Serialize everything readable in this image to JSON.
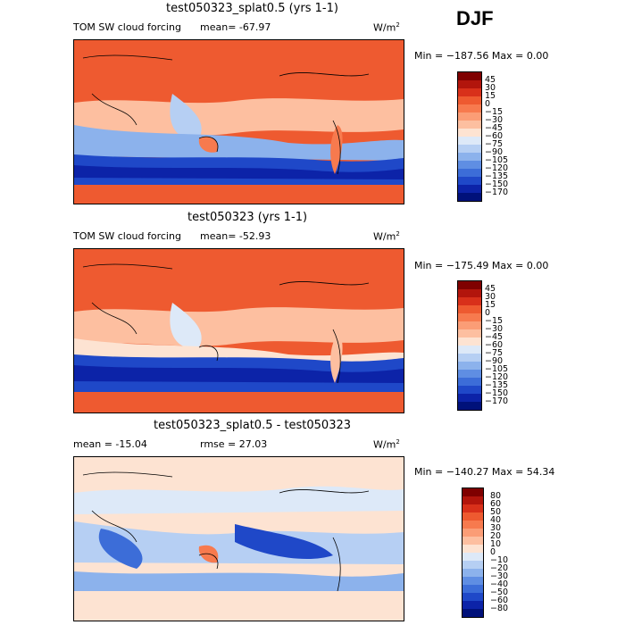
{
  "season": "DJF",
  "panels": [
    {
      "title": "test050323_splat0.5 (yrs 1-1)",
      "label_left": "TOM SW cloud forcing",
      "label_mid": "mean= -67.97",
      "units": "W/m",
      "units_sup": "2",
      "minmax": "Min = −187.56 Max =    0.00",
      "colorbar_labels": [
        "45",
        "30",
        "15",
        "0",
        "−15",
        "−30",
        "−45",
        "−60",
        "−75",
        "−90",
        "−105",
        "−120",
        "−135",
        "−150",
        "−170"
      ],
      "colorbar_colors": [
        "#7f0000",
        "#b2150c",
        "#d8301a",
        "#ee5a30",
        "#f77a4e",
        "#fb9d76",
        "#fdbfa0",
        "#fde3d2",
        "#dde9f8",
        "#b6cff3",
        "#8cb2ec",
        "#5f8ee3",
        "#3c6dd8",
        "#1f48c8",
        "#0c23a8",
        "#00117a"
      ]
    },
    {
      "title": "test050323 (yrs 1-1)",
      "label_left": "TOM SW cloud forcing",
      "label_mid": "mean= -52.93",
      "units": "W/m",
      "units_sup": "2",
      "minmax": "Min = −175.49 Max =    0.00",
      "colorbar_labels": [
        "45",
        "30",
        "15",
        "0",
        "−15",
        "−30",
        "−45",
        "−60",
        "−75",
        "−90",
        "−105",
        "−120",
        "−135",
        "−150",
        "−170"
      ],
      "colorbar_colors": [
        "#7f0000",
        "#b2150c",
        "#d8301a",
        "#ee5a30",
        "#f77a4e",
        "#fb9d76",
        "#fdbfa0",
        "#fde3d2",
        "#dde9f8",
        "#b6cff3",
        "#8cb2ec",
        "#5f8ee3",
        "#3c6dd8",
        "#1f48c8",
        "#0c23a8",
        "#00117a"
      ]
    },
    {
      "title": "test050323_splat0.5 - test050323",
      "label_left": "mean = -15.04",
      "label_mid": "rmse =  27.03",
      "units": "W/m",
      "units_sup": "2",
      "minmax": "Min = −140.27 Max =  54.34",
      "colorbar_labels": [
        "80",
        "60",
        "50",
        "40",
        "30",
        "20",
        "10",
        "0",
        "−10",
        "−20",
        "−30",
        "−40",
        "−50",
        "−60",
        "−80"
      ],
      "colorbar_colors": [
        "#7f0000",
        "#b2150c",
        "#d8301a",
        "#ee5a30",
        "#f77a4e",
        "#fb9d76",
        "#fdbfa0",
        "#fde3d2",
        "#dde9f8",
        "#b6cff3",
        "#8cb2ec",
        "#5f8ee3",
        "#3c6dd8",
        "#1f48c8",
        "#0c23a8",
        "#00117a"
      ]
    }
  ]
}
